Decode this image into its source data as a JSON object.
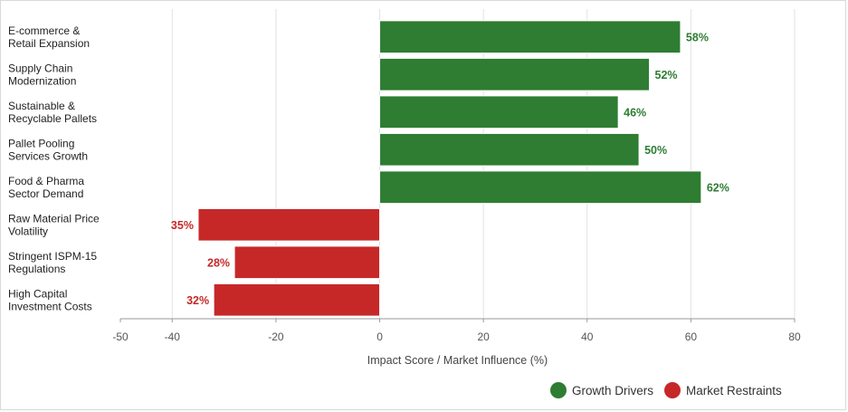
{
  "chart_data": {
    "type": "bar",
    "orientation": "horizontal",
    "categories": [
      [
        "E-commerce &",
        "Retail Expansion"
      ],
      [
        "Supply Chain",
        "Modernization"
      ],
      [
        "Sustainable &",
        "Recyclable Pallets"
      ],
      [
        "Pallet Pooling",
        "Services Growth"
      ],
      [
        "Food & Pharma",
        "Sector Demand"
      ],
      [
        "Raw Material Price",
        "Volatility"
      ],
      [
        "Stringent ISPM-15",
        "Regulations"
      ],
      [
        "High Capital",
        "Investment Costs"
      ]
    ],
    "values": [
      58,
      52,
      46,
      50,
      62,
      -35,
      -28,
      -32
    ],
    "data_labels": [
      "58%",
      "52%",
      "46%",
      "50%",
      "62%",
      "35%",
      "28%",
      "32%"
    ],
    "series_index": [
      0,
      0,
      0,
      0,
      0,
      1,
      1,
      1
    ],
    "series": [
      {
        "name": "Growth Drivers",
        "color": "#2e7d32"
      },
      {
        "name": "Market Restraints",
        "color": "#c62828"
      }
    ],
    "xlabel": "Impact Score / Market Influence (%)",
    "xlim": [
      -50,
      80
    ],
    "xticks": [
      -50,
      -40,
      -20,
      0,
      20,
      40,
      60,
      80
    ],
    "xtick_labels": [
      "-50",
      "-40",
      "-20",
      "0",
      "20",
      "40",
      "60",
      "80"
    ],
    "grid": true,
    "legend_position": "bottom-right"
  }
}
